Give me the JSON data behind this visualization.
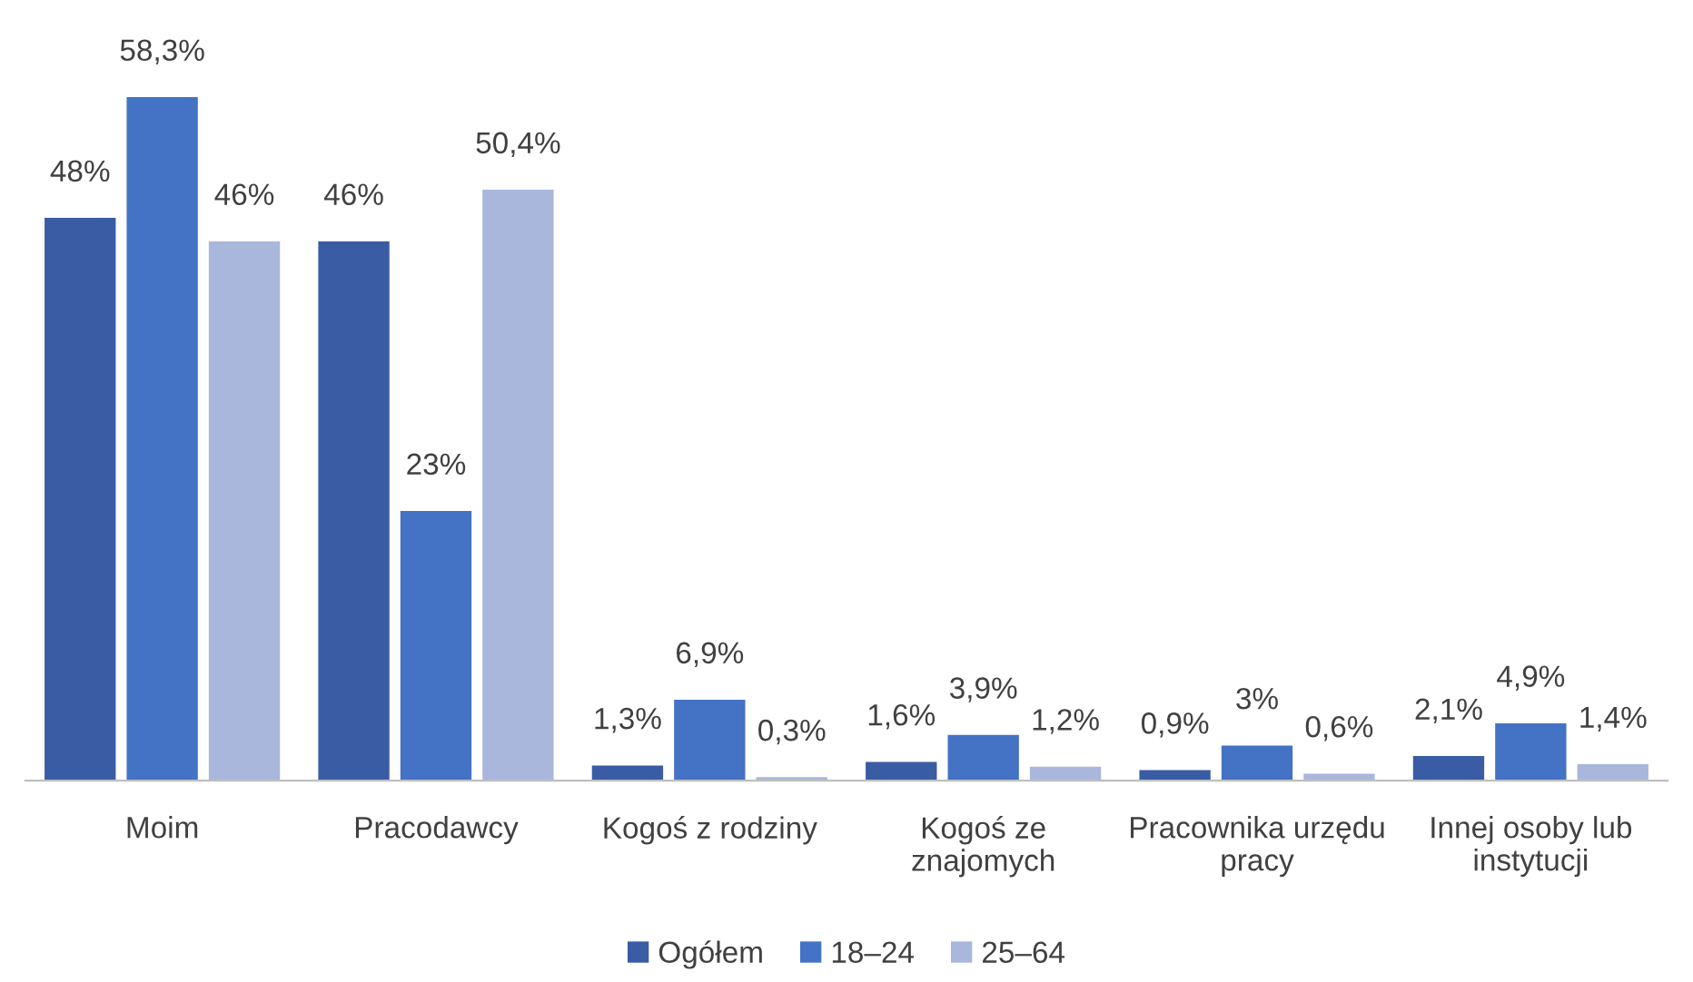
{
  "chart_data": {
    "type": "bar",
    "categories": [
      "Moim",
      "Pracodawcy",
      "Kogoś z rodziny",
      "Kogoś ze\nznajomych",
      "Pracownika urzędu\npracy",
      "Innej osoby lub\ninstytucji"
    ],
    "series": [
      {
        "name": "Ogółem",
        "color": "#3a5ca5",
        "values": [
          48,
          46,
          1.3,
          1.6,
          0.9,
          2.1
        ],
        "value_labels": [
          "48%",
          "46%",
          "1,3%",
          "1,6%",
          "0,9%",
          "2,1%"
        ]
      },
      {
        "name": "18–24",
        "color": "#4472c4",
        "values": [
          58.3,
          23,
          6.9,
          3.9,
          3,
          4.9
        ],
        "value_labels": [
          "58,3%",
          "23%",
          "6,9%",
          "3,9%",
          "3%",
          "4,9%"
        ]
      },
      {
        "name": "25–64",
        "color": "#a9b7dc",
        "values": [
          46,
          50.4,
          0.3,
          1.2,
          0.6,
          1.4
        ],
        "value_labels": [
          "46%",
          "50,4%",
          "0,3%",
          "1,2%",
          "0,6%",
          "1,4%"
        ]
      }
    ],
    "legend": "bottom"
  }
}
